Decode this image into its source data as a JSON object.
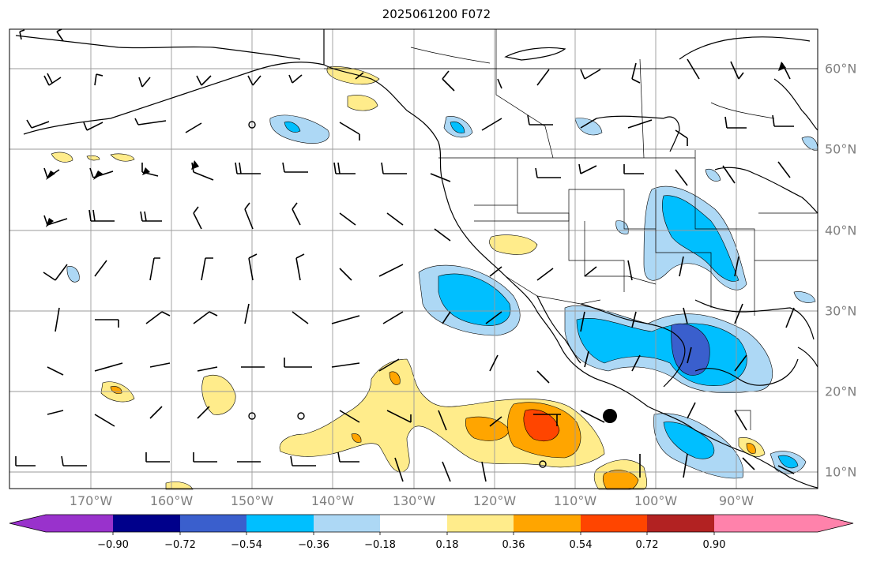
{
  "title": "2025061200 F072",
  "lon_labels": [
    "170°W",
    "160°W",
    "150°W",
    "140°W",
    "130°W",
    "120°W",
    "110°W",
    "100°W",
    "90°W"
  ],
  "lat_labels": [
    "60°N",
    "50°N",
    "40°N",
    "30°N",
    "20°N",
    "10°N"
  ],
  "colorbar": {
    "ticks": [
      "−0.90",
      "−0.72",
      "−0.54",
      "−0.36",
      "−0.18",
      "0.18",
      "0.36",
      "0.54",
      "0.72",
      "0.90"
    ],
    "colors": [
      "#9932cc",
      "#00008b",
      "#3a5fcd",
      "#00bfff",
      "#add8f5",
      "#ffffff",
      "#ffec8b",
      "#ffa500",
      "#ff4500",
      "#b22222",
      "#ff82ab"
    ]
  },
  "chart_data": {
    "type": "map",
    "title": "2025061200 F072",
    "lon_range": [
      -180,
      -80
    ],
    "lat_range": [
      8,
      66
    ],
    "lon_ticks": [
      -170,
      -160,
      -150,
      -140,
      -130,
      -120,
      -110,
      -100,
      -90
    ],
    "lat_ticks": [
      10,
      20,
      30,
      40,
      50,
      60
    ],
    "contour_levels": [
      -0.9,
      -0.72,
      -0.54,
      -0.36,
      -0.18,
      0.18,
      0.36,
      0.54,
      0.72,
      0.9
    ],
    "grid": true
  }
}
